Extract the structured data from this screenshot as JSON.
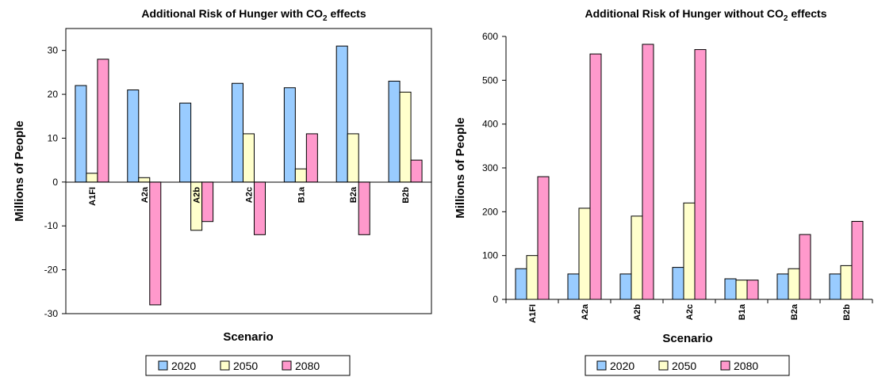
{
  "colors": {
    "2020": "#99ccff",
    "2050": "#ffffcc",
    "2080": "#ff99cc"
  },
  "chart_data": [
    {
      "type": "bar",
      "title": "Additional Risk of Hunger with CO2 effects",
      "title_main": "Additional Risk of Hunger with CO",
      "title_sub": "2",
      "title_end": " effects",
      "xlabel": "Scenario",
      "ylabel": "Millions of People",
      "ylim": [
        -30,
        35
      ],
      "yticks": [
        "30",
        "20",
        "10",
        "0",
        "-10",
        "-20",
        "-30"
      ],
      "categories": [
        "A1FI",
        "A2a",
        "A2b",
        "A2c",
        "B1a",
        "B2a",
        "B2b"
      ],
      "legend_position": "bottom",
      "series": [
        {
          "name": "2020",
          "values": [
            22,
            21,
            18,
            22.5,
            21.5,
            31,
            23
          ]
        },
        {
          "name": "2050",
          "values": [
            2,
            1,
            -11,
            11,
            3,
            11,
            20.5
          ]
        },
        {
          "name": "2080",
          "values": [
            28,
            -28,
            -9,
            -12,
            11,
            -12,
            5
          ]
        }
      ]
    },
    {
      "type": "bar",
      "title": "Additional Risk of Hunger without CO2 effects",
      "title_main": "Additional Risk of Hunger without CO",
      "title_sub": "2",
      "title_end": " effects",
      "xlabel": "Scenario",
      "ylabel": "Millions of People",
      "ylim": [
        0,
        600
      ],
      "yticks": [
        "600",
        "500",
        "400",
        "300",
        "200",
        "100",
        "0"
      ],
      "categories": [
        "A1FI",
        "A2a",
        "A2b",
        "A2c",
        "B1a",
        "B2a",
        "B2b"
      ],
      "legend_position": "bottom",
      "series": [
        {
          "name": "2020",
          "values": [
            70,
            58,
            58,
            73,
            47,
            58,
            58
          ]
        },
        {
          "name": "2050",
          "values": [
            100,
            208,
            190,
            220,
            44,
            70,
            77
          ]
        },
        {
          "name": "2080",
          "values": [
            280,
            560,
            582,
            570,
            44,
            148,
            178
          ]
        }
      ]
    }
  ]
}
